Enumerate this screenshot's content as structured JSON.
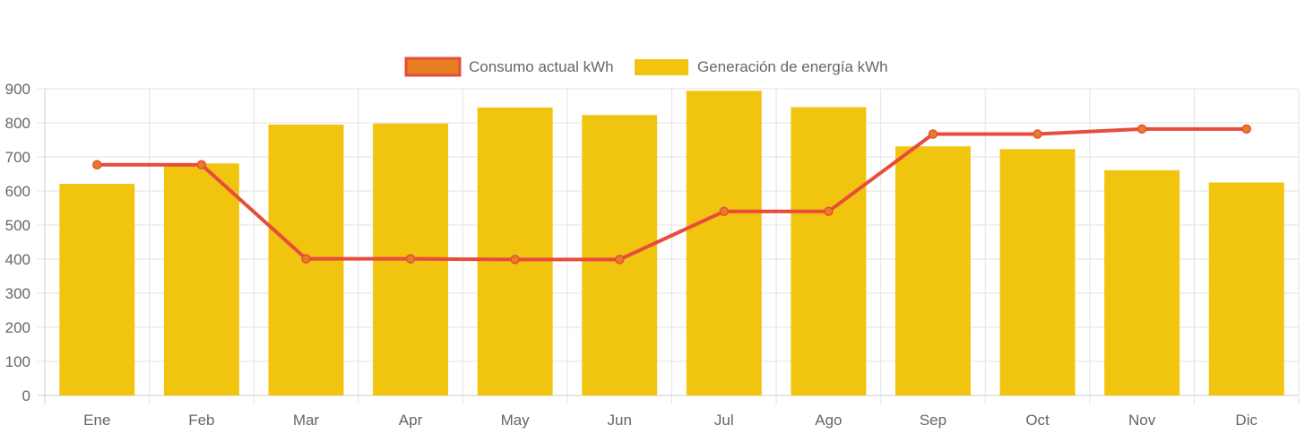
{
  "chart_data": {
    "type": "bar",
    "categories": [
      "Ene",
      "Feb",
      "Mar",
      "Apr",
      "May",
      "Jun",
      "Jul",
      "Ago",
      "Sep",
      "Oct",
      "Nov",
      "Dic"
    ],
    "ylim": [
      0,
      900
    ],
    "yticks": [
      0,
      100,
      200,
      300,
      400,
      500,
      600,
      700,
      800,
      900
    ],
    "grid": true,
    "legend_position": "top",
    "series": [
      {
        "name": "Consumo actual kWh",
        "type": "line",
        "color": "#e74c3c",
        "point_color": "#e67e22",
        "values": [
          677,
          677,
          401,
          401,
          399,
          399,
          540,
          540,
          767,
          767,
          782,
          782
        ]
      },
      {
        "name": "Generación de energía kWh",
        "type": "bar",
        "color": "#f1c40f",
        "values": [
          621,
          681,
          795,
          798,
          845,
          823,
          894,
          846,
          731,
          723,
          661,
          625
        ]
      }
    ]
  }
}
